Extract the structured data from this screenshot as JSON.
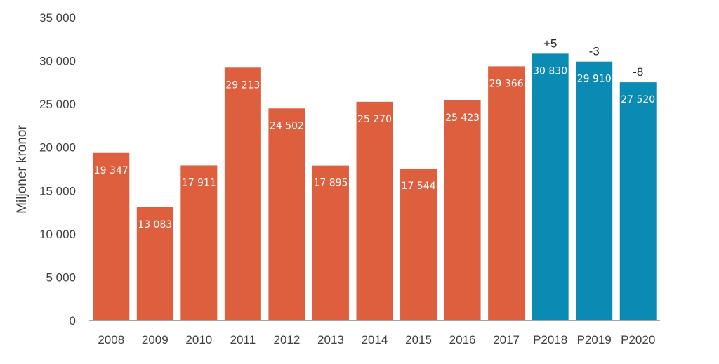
{
  "chart_data": {
    "type": "bar",
    "title": "",
    "xlabel": "",
    "ylabel": "Miljoner kronor",
    "ylim": [
      0,
      35000
    ],
    "yticks": [
      0,
      5000,
      10000,
      15000,
      20000,
      25000,
      30000,
      35000
    ],
    "ytick_labels": [
      "0",
      "5 000",
      "10 000",
      "15 000",
      "20 000",
      "25 000",
      "30 000",
      "35 000"
    ],
    "grid": false,
    "categories": [
      "2008",
      "2009",
      "2010",
      "2011",
      "2012",
      "2013",
      "2014",
      "2015",
      "2016",
      "2017",
      "P2018",
      "P2019",
      "P2020"
    ],
    "values": [
      19347,
      13083,
      17911,
      29213,
      24502,
      17895,
      25270,
      17544,
      25423,
      29366,
      30830,
      29910,
      27520
    ],
    "value_labels": [
      "19 347",
      "13 083",
      "17 911",
      "29 213",
      "24 502",
      "17 895",
      "25 270",
      "17 544",
      "25 423",
      "29 366",
      "30 830",
      "29 910",
      "27 520"
    ],
    "change_labels": [
      "",
      "",
      "",
      "",
      "",
      "",
      "",
      "",
      "",
      "",
      "+5",
      "-3",
      "-8"
    ],
    "colors": {
      "actual": "#DD5F3E",
      "forecast": "#0A8BB3",
      "axis": "#A6A6A6"
    },
    "forecast_categories": [
      "P2018",
      "P2019",
      "P2020"
    ]
  }
}
